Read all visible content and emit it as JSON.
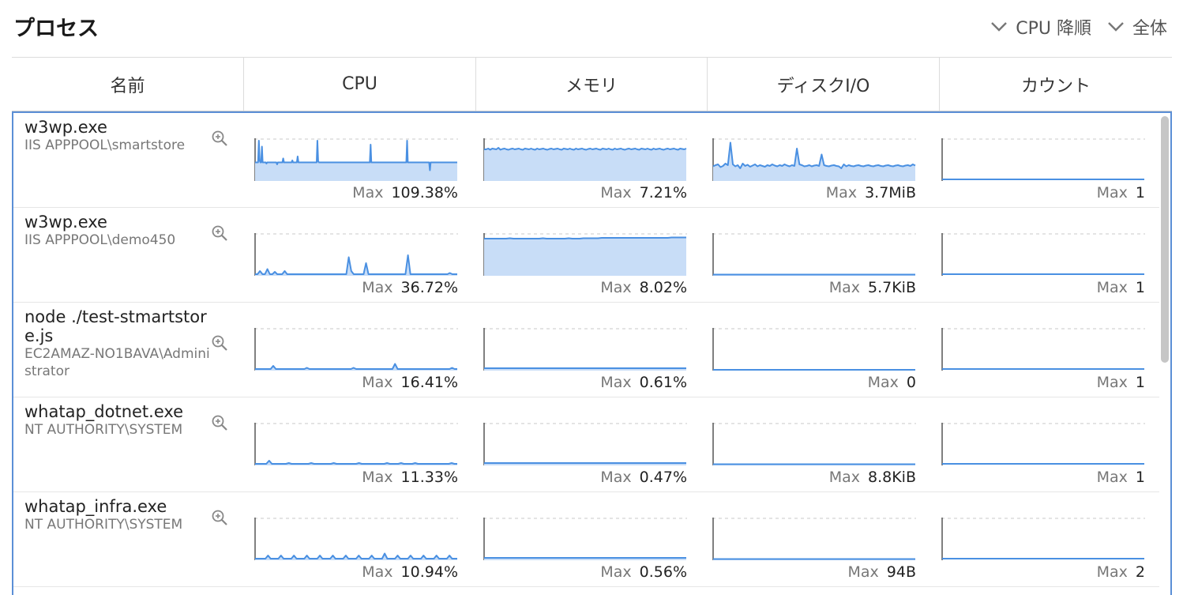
{
  "title": "プロセス",
  "controls": {
    "sort_label": "CPU 降順",
    "scope_label": "全体"
  },
  "columns": [
    "名前",
    "CPU",
    "メモリ",
    "ディスクI/O",
    "カウント"
  ],
  "max_label": "Max",
  "colors": {
    "accent": "#4a90e2",
    "fill": "#c8ddf7",
    "frame": "#5b8fd6"
  },
  "rows": [
    {
      "name": "w3wp.exe",
      "user": "IIS APPPOOL\\smartstore",
      "cpu": {
        "max": "109.38%",
        "series": [
          0.45,
          0.45,
          0.45,
          0.45,
          0.45,
          1.0,
          0.5,
          0.45,
          0.45,
          0.85,
          0.45,
          0.45,
          0.45,
          0.45,
          0.45,
          0.42,
          0.45,
          0.45,
          0.45,
          0.45,
          0.45,
          0.45,
          0.45,
          0.45,
          0.45,
          0.45,
          0.45,
          0.45,
          0.45,
          0.4,
          0.45,
          0.45,
          0.45,
          0.45,
          0.45,
          0.45,
          0.45,
          0.55,
          0.45,
          0.45,
          0.45,
          0.45,
          0.45,
          0.45,
          0.45,
          0.45,
          0.45,
          0.45,
          0.45,
          0.5,
          0.45,
          0.45,
          0.45,
          0.45,
          0.45,
          0.45,
          0.6,
          0.45,
          0.45,
          0.45,
          0.45,
          0.45,
          0.45,
          0.45,
          0.45,
          0.45,
          0.45,
          0.45,
          0.45,
          0.45,
          0.45,
          0.45,
          0.45,
          0.45,
          0.45,
          0.45,
          0.45,
          0.45,
          0.45,
          0.45,
          0.45,
          0.45,
          1.12,
          0.48,
          0.45,
          0.45,
          0.45,
          0.45,
          0.45,
          0.45,
          0.45,
          0.45,
          0.45,
          0.45,
          0.45,
          0.45,
          0.45,
          0.45,
          0.45,
          0.45,
          0.45,
          0.45,
          0.45,
          0.45,
          0.45,
          0.45,
          0.45,
          0.45,
          0.45,
          0.45,
          0.45,
          0.45,
          0.45,
          0.45,
          0.45,
          0.45,
          0.45,
          0.45,
          0.45,
          0.45,
          0.45,
          0.45,
          0.45,
          0.45,
          0.45,
          0.45,
          0.45,
          0.45,
          0.45,
          0.45,
          0.45,
          0.45,
          0.45,
          0.45,
          0.45,
          0.45,
          0.45,
          0.45,
          0.45,
          0.45,
          0.45,
          0.45,
          0.45,
          0.45,
          0.45,
          0.45,
          0.45,
          0.45,
          0.45,
          0.45,
          0.45,
          0.45,
          0.9,
          0.45,
          0.45,
          0.45,
          0.45,
          0.45,
          0.45,
          0.45,
          0.45,
          0.45,
          0.45,
          0.45,
          0.45,
          0.45,
          0.45,
          0.45,
          0.45,
          0.45,
          0.45,
          0.45,
          0.45,
          0.45,
          0.45,
          0.45,
          0.45,
          0.45,
          0.45,
          0.45,
          0.45,
          0.45,
          0.45,
          0.45,
          0.45,
          0.45,
          0.45,
          0.45,
          0.45,
          0.45,
          0.45,
          0.45,
          0.45,
          0.45,
          0.45,
          0.45,
          0.45,
          0.45,
          0.45,
          0.45,
          1.0,
          0.45,
          0.45,
          0.45,
          0.45,
          0.45,
          0.45,
          0.45,
          0.45,
          0.45,
          0.45,
          0.45,
          0.45,
          0.45,
          0.45,
          0.45,
          0.45,
          0.45,
          0.45,
          0.45,
          0.45,
          0.45,
          0.45,
          0.45,
          0.45,
          0.45,
          0.45,
          0.45,
          0.45,
          0.45,
          0.25,
          0.45,
          0.45,
          0.45,
          0.45,
          0.45,
          0.45,
          0.45,
          0.45,
          0.45,
          0.45,
          0.45,
          0.45,
          0.45,
          0.45,
          0.45,
          0.45,
          0.45,
          0.45,
          0.45,
          0.45,
          0.45,
          0.45,
          0.45,
          0.45,
          0.45,
          0.45,
          0.45,
          0.45,
          0.45,
          0.45,
          0.45,
          0.45,
          0.45,
          0.45,
          0.45,
          0.45
        ]
      },
      "mem": {
        "max": "7.21%",
        "series": [
          0.78,
          0.78,
          0.8,
          0.77,
          0.8,
          0.79,
          0.78,
          0.82,
          0.77,
          0.79,
          0.8,
          0.78,
          0.77,
          0.79,
          0.8,
          0.78,
          0.79,
          0.8,
          0.78,
          0.77,
          0.8,
          0.79,
          0.78,
          0.8,
          0.78,
          0.77,
          0.8,
          0.78,
          0.79,
          0.8,
          0.78,
          0.77,
          0.79,
          0.8,
          0.78,
          0.79,
          0.8,
          0.78,
          0.77,
          0.8,
          0.79,
          0.78,
          0.8,
          0.78,
          0.77,
          0.8,
          0.78,
          0.79,
          0.8,
          0.78,
          0.77,
          0.79,
          0.8,
          0.78,
          0.79,
          0.8,
          0.78,
          0.77,
          0.8,
          0.79,
          0.78,
          0.8,
          0.78,
          0.77,
          0.8,
          0.78,
          0.79,
          0.8,
          0.78,
          0.77,
          0.79,
          0.8,
          0.78,
          0.79,
          0.8,
          0.78,
          0.77,
          0.8,
          0.79,
          0.78,
          0.8,
          0.78,
          0.77,
          0.8,
          0.78,
          0.79,
          0.8,
          0.78,
          0.77,
          0.79,
          0.8,
          0.78,
          0.79,
          0.8,
          0.78,
          0.77,
          0.8,
          0.79,
          0.78,
          0.8
        ]
      },
      "disk": {
        "max": "3.7MiB",
        "series": [
          0.35,
          0.38,
          0.4,
          0.33,
          0.36,
          0.42,
          0.38,
          0.95,
          0.4,
          0.35,
          0.38,
          0.3,
          0.42,
          0.36,
          0.39,
          0.34,
          0.37,
          0.4,
          0.35,
          0.38,
          0.36,
          0.34,
          0.38,
          0.36,
          0.4,
          0.37,
          0.35,
          0.38,
          0.36,
          0.4,
          0.37,
          0.35,
          0.38,
          0.36,
          0.8,
          0.4,
          0.38,
          0.35,
          0.36,
          0.38,
          0.35,
          0.37,
          0.38,
          0.36,
          0.65,
          0.38,
          0.36,
          0.35,
          0.37,
          0.38,
          0.36,
          0.35,
          0.3,
          0.4,
          0.35,
          0.38,
          0.36,
          0.35,
          0.37,
          0.38,
          0.36,
          0.35,
          0.37,
          0.38,
          0.36,
          0.35,
          0.37,
          0.38,
          0.36,
          0.35,
          0.37,
          0.38,
          0.36,
          0.35,
          0.37,
          0.38,
          0.36,
          0.35,
          0.37,
          0.38,
          0.36,
          0.4,
          0.37
        ]
      },
      "count": {
        "max": "1",
        "value": 0.02
      }
    },
    {
      "name": "w3wp.exe",
      "user": "IIS APPPOOL\\demo450",
      "cpu": {
        "max": "36.72%",
        "series": [
          0.02,
          0.02,
          0.1,
          0.02,
          0.02,
          0.15,
          0.02,
          0.02,
          0.08,
          0.02,
          0.02,
          0.02,
          0.1,
          0.02,
          0.02,
          0.02,
          0.02,
          0.02,
          0.02,
          0.02,
          0.02,
          0.02,
          0.02,
          0.02,
          0.02,
          0.02,
          0.02,
          0.02,
          0.02,
          0.02,
          0.02,
          0.02,
          0.02,
          0.02,
          0.02,
          0.02,
          0.02,
          0.02,
          0.45,
          0.1,
          0.02,
          0.02,
          0.02,
          0.02,
          0.02,
          0.3,
          0.02,
          0.02,
          0.02,
          0.02,
          0.02,
          0.02,
          0.02,
          0.02,
          0.02,
          0.02,
          0.02,
          0.02,
          0.02,
          0.02,
          0.02,
          0.02,
          0.5,
          0.02,
          0.02,
          0.02,
          0.02,
          0.02,
          0.02,
          0.02,
          0.02,
          0.02,
          0.02,
          0.02,
          0.02,
          0.02,
          0.02,
          0.02,
          0.02,
          0.05,
          0.02,
          0.02,
          0.02
        ]
      },
      "mem": {
        "max": "8.02%",
        "series": [
          0.92,
          0.92,
          0.92,
          0.92,
          0.92,
          0.92,
          0.92,
          0.93,
          0.92,
          0.92,
          0.92,
          0.92,
          0.92,
          0.92,
          0.92,
          0.92,
          0.93,
          0.92,
          0.92,
          0.92,
          0.92,
          0.92,
          0.92,
          0.93,
          0.92,
          0.92,
          0.92,
          0.93,
          0.93,
          0.93,
          0.93,
          0.93,
          0.94,
          0.94,
          0.94,
          0.94,
          0.94,
          0.94,
          0.94,
          0.94,
          0.94,
          0.94,
          0.94,
          0.94,
          0.94,
          0.94,
          0.94,
          0.94,
          0.94,
          0.94,
          0.94,
          0.95,
          0.95,
          0.95,
          0.95,
          0.95
        ]
      },
      "disk": {
        "max": "5.7KiB",
        "series": [
          0.01,
          0.01,
          0.01,
          0.01
        ]
      },
      "count": {
        "max": "1",
        "value": 0.02
      }
    },
    {
      "name": "node ./test-stmartstore.js",
      "user": "EC2AMAZ-NO1BAVA\\Administrator",
      "cpu": {
        "max": "16.41%",
        "series": [
          0.02,
          0.02,
          0.02,
          0.02,
          0.02,
          0.02,
          0.02,
          0.1,
          0.02,
          0.02,
          0.02,
          0.02,
          0.02,
          0.02,
          0.02,
          0.02,
          0.02,
          0.02,
          0.02,
          0.02,
          0.05,
          0.02,
          0.02,
          0.02,
          0.02,
          0.02,
          0.02,
          0.02,
          0.02,
          0.02,
          0.02,
          0.02,
          0.02,
          0.02,
          0.02,
          0.02,
          0.02,
          0.02,
          0.05,
          0.02,
          0.02,
          0.02,
          0.02,
          0.02,
          0.02,
          0.02,
          0.02,
          0.02,
          0.02,
          0.02,
          0.02,
          0.02,
          0.02,
          0.02,
          0.15,
          0.02,
          0.02,
          0.02,
          0.02,
          0.02,
          0.02,
          0.02,
          0.02,
          0.02,
          0.02,
          0.02,
          0.02,
          0.02,
          0.02,
          0.02,
          0.02,
          0.02,
          0.02,
          0.02,
          0.02,
          0.02,
          0.05,
          0.02,
          0.02
        ]
      },
      "mem": {
        "max": "0.61%",
        "series": [
          0.04,
          0.04,
          0.04,
          0.04
        ]
      },
      "disk": {
        "max": "0",
        "series": [
          0.0,
          0.0,
          0.0,
          0.0
        ]
      },
      "count": {
        "max": "1",
        "value": 0.02
      }
    },
    {
      "name": "whatap_dotnet.exe",
      "user": "NT AUTHORITY\\SYSTEM",
      "cpu": {
        "max": "11.33%",
        "series": [
          0.02,
          0.02,
          0.02,
          0.02,
          0.02,
          0.1,
          0.02,
          0.02,
          0.02,
          0.02,
          0.02,
          0.02,
          0.04,
          0.02,
          0.02,
          0.02,
          0.02,
          0.02,
          0.02,
          0.02,
          0.04,
          0.02,
          0.02,
          0.02,
          0.02,
          0.02,
          0.02,
          0.02,
          0.04,
          0.02,
          0.02,
          0.02,
          0.02,
          0.02,
          0.02,
          0.02,
          0.02,
          0.04,
          0.02,
          0.02,
          0.02,
          0.02,
          0.02,
          0.02,
          0.02,
          0.02,
          0.02,
          0.04,
          0.02,
          0.02,
          0.02,
          0.02,
          0.04,
          0.02,
          0.02,
          0.02,
          0.02,
          0.04,
          0.02,
          0.02,
          0.02,
          0.02,
          0.02,
          0.02,
          0.02,
          0.02,
          0.02,
          0.02,
          0.02,
          0.02,
          0.04,
          0.02,
          0.02
        ]
      },
      "mem": {
        "max": "0.47%",
        "series": [
          0.04,
          0.04,
          0.04,
          0.04
        ]
      },
      "disk": {
        "max": "8.8KiB",
        "series": [
          0.01,
          0.01,
          0.01,
          0.01
        ]
      },
      "count": {
        "max": "1",
        "value": 0.02
      }
    },
    {
      "name": "whatap_infra.exe",
      "user": "NT AUTHORITY\\SYSTEM",
      "cpu": {
        "max": "10.94%",
        "series": [
          0.02,
          0.02,
          0.02,
          0.02,
          0.02,
          0.1,
          0.02,
          0.02,
          0.02,
          0.02,
          0.1,
          0.02,
          0.02,
          0.02,
          0.02,
          0.1,
          0.02,
          0.02,
          0.02,
          0.02,
          0.1,
          0.02,
          0.02,
          0.02,
          0.02,
          0.1,
          0.02,
          0.02,
          0.02,
          0.02,
          0.1,
          0.02,
          0.02,
          0.02,
          0.02,
          0.1,
          0.02,
          0.02,
          0.02,
          0.02,
          0.1,
          0.02,
          0.02,
          0.02,
          0.02,
          0.1,
          0.02,
          0.02,
          0.02,
          0.02,
          0.15,
          0.02,
          0.02,
          0.02,
          0.02,
          0.1,
          0.02,
          0.02,
          0.02,
          0.02,
          0.1,
          0.02,
          0.02,
          0.02,
          0.02,
          0.1,
          0.02,
          0.02,
          0.02,
          0.02,
          0.1,
          0.02,
          0.02,
          0.02,
          0.02,
          0.1,
          0.02,
          0.02,
          0.02
        ]
      },
      "mem": {
        "max": "0.56%",
        "series": [
          0.04,
          0.04,
          0.04,
          0.04
        ]
      },
      "disk": {
        "max": "94B",
        "series": [
          0.01,
          0.01,
          0.01,
          0.01
        ]
      },
      "count": {
        "max": "2",
        "value": 0.02
      }
    }
  ]
}
